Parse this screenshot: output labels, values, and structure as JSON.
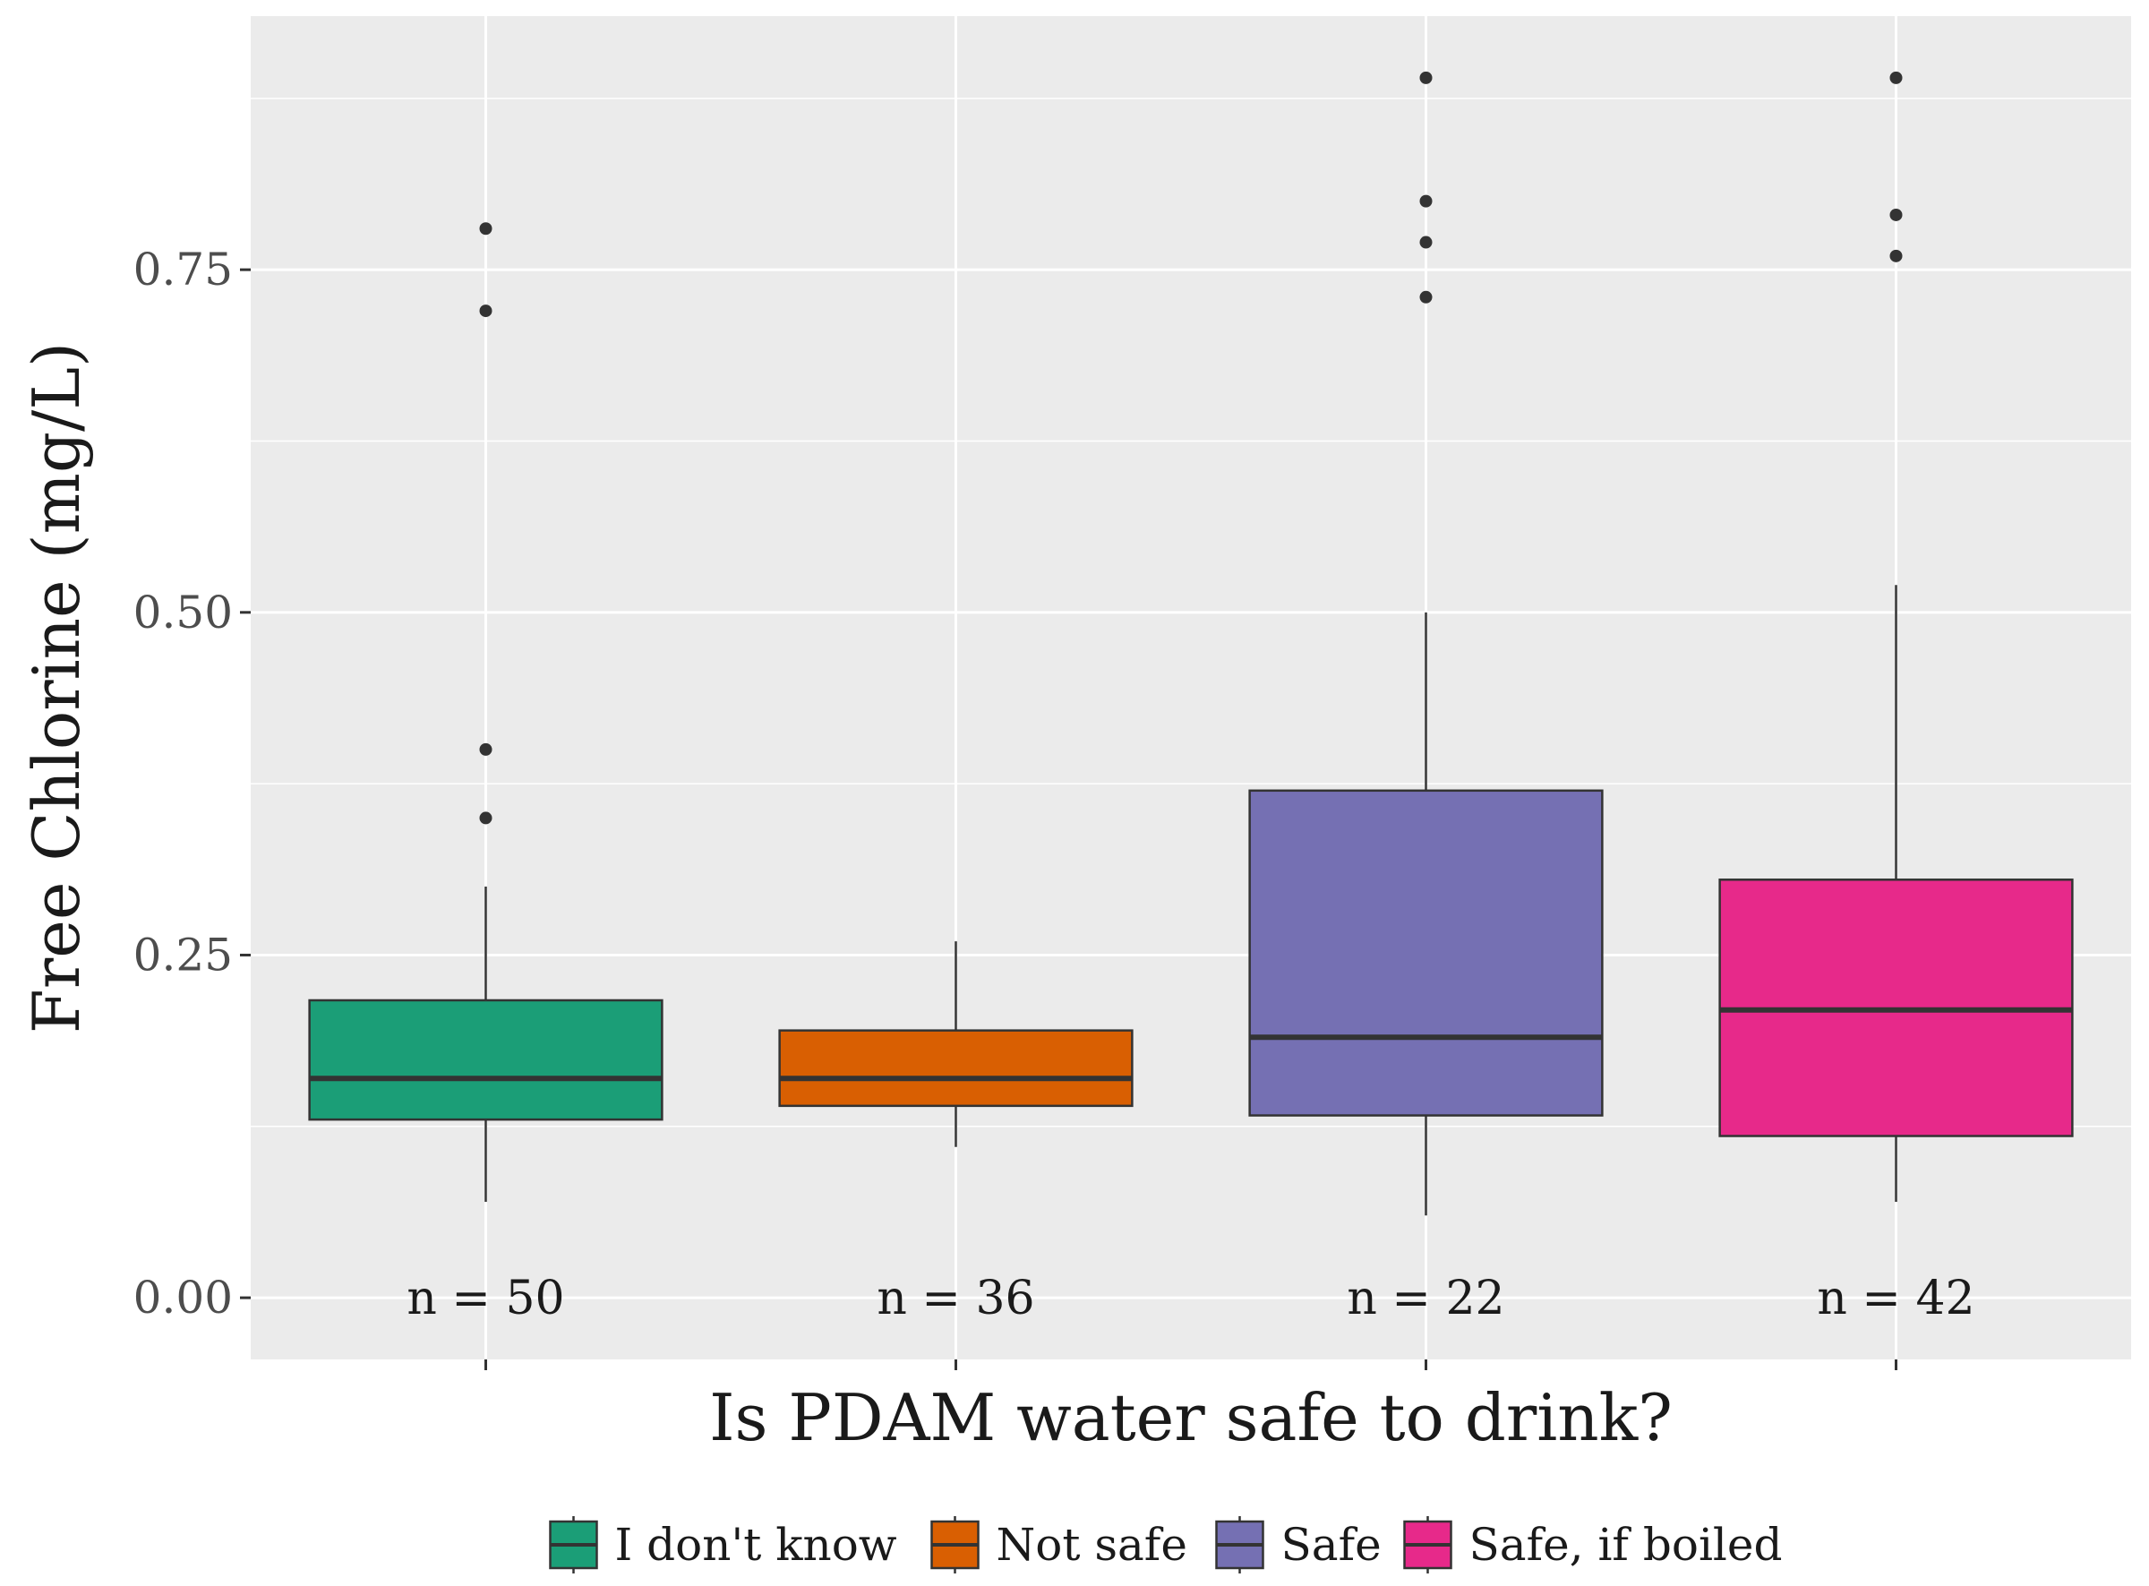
{
  "chart_data": {
    "type": "boxplot",
    "title": "",
    "xlabel": "Is PDAM water safe to drink?",
    "ylabel": "Free Chlorine (mg/L)",
    "ylim": [
      -0.045,
      0.935
    ],
    "yticks": [
      0.0,
      0.25,
      0.5,
      0.75
    ],
    "ytick_labels": [
      "0.00",
      "0.25",
      "0.50",
      "0.75"
    ],
    "grid": true,
    "legend_position": "bottom",
    "categories": [
      "I don't know",
      "Not safe",
      "Safe",
      "Safe, if boiled"
    ],
    "series": [
      {
        "name": "I don't know",
        "color": "#1b9e77",
        "whisker_low": 0.07,
        "q1": 0.13,
        "median": 0.16,
        "q3": 0.217,
        "whisker_high": 0.3,
        "outliers": [
          0.35,
          0.4,
          0.72,
          0.78
        ],
        "n_label": "n = 50"
      },
      {
        "name": "Not safe",
        "color": "#d95f02",
        "whisker_low": 0.11,
        "q1": 0.14,
        "median": 0.16,
        "q3": 0.195,
        "whisker_high": 0.26,
        "outliers": [],
        "n_label": "n = 36"
      },
      {
        "name": "Safe",
        "color": "#7570b3",
        "whisker_low": 0.06,
        "q1": 0.133,
        "median": 0.19,
        "q3": 0.37,
        "whisker_high": 0.5,
        "outliers": [
          0.73,
          0.77,
          0.8,
          0.89
        ],
        "n_label": "n = 22"
      },
      {
        "name": "Safe, if boiled",
        "color": "#e7298a",
        "whisker_low": 0.07,
        "q1": 0.118,
        "median": 0.21,
        "q3": 0.305,
        "whisker_high": 0.52,
        "outliers": [
          0.76,
          0.79,
          0.89
        ],
        "n_label": "n = 42"
      }
    ]
  }
}
